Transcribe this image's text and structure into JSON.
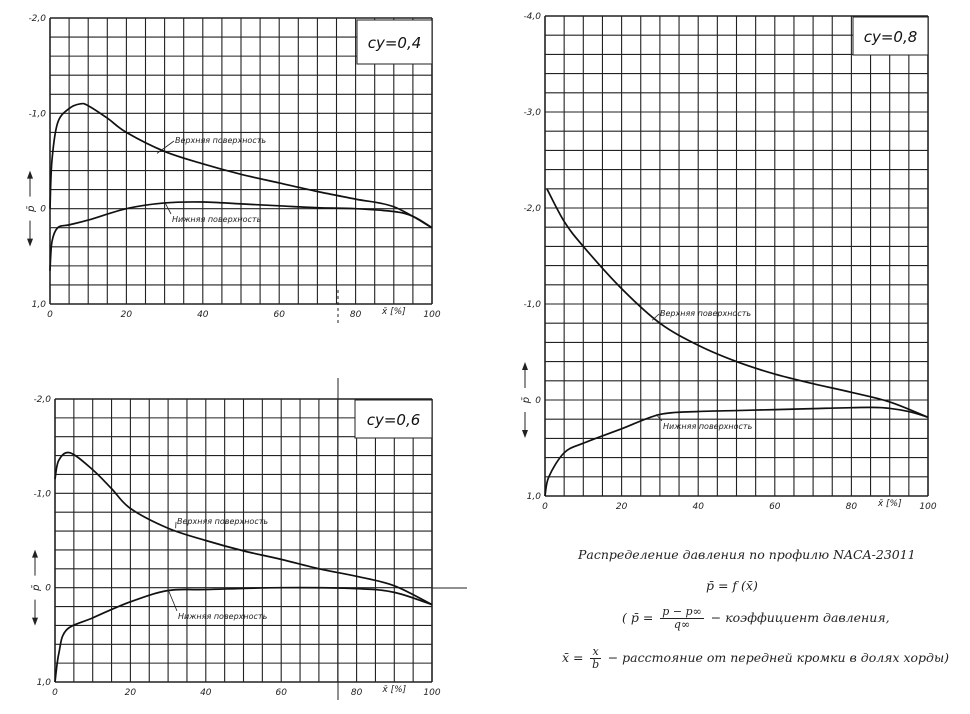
{
  "caption": {
    "title": "Распределение давления по профилю NACA-23011",
    "formula": "p̄ = f (x̄)",
    "p_def_prefix": "( p̄ =",
    "p_def_num": "p − p∞",
    "p_def_den": "q∞",
    "p_def_text": "− коэффициент давления,",
    "x_def_prefix": "x̄ =",
    "x_def_num": "x",
    "x_def_den": "b",
    "x_def_text": "− расстояние от передней кромки в долях хорды)"
  },
  "chart_data": [
    {
      "type": "line",
      "title": "cy=0,4",
      "xlabel": "x̄ [%]",
      "ylabel": "p̄",
      "xlim": [
        0,
        100
      ],
      "ylim": [
        -2.0,
        1.0
      ],
      "y_inverted": true,
      "grid": true,
      "x_ticks": [
        "0",
        "20",
        "40",
        "60",
        "80",
        "100"
      ],
      "y_ticks": [
        "-2,0",
        "-1,0",
        "0",
        "1,0"
      ],
      "series": [
        {
          "name": "Верхняя поверхность",
          "x": [
            0,
            0.5,
            2,
            5,
            8,
            10,
            15,
            20,
            30,
            40,
            50,
            60,
            70,
            80,
            90,
            100
          ],
          "y": [
            0.0,
            -0.5,
            -0.9,
            -1.05,
            -1.1,
            -1.08,
            -0.95,
            -0.8,
            -0.6,
            -0.47,
            -0.36,
            -0.27,
            -0.18,
            -0.1,
            -0.02,
            0.2
          ]
        },
        {
          "name": "Нижняя поверхность",
          "x": [
            0,
            0.5,
            2,
            5,
            10,
            20,
            30,
            40,
            50,
            60,
            70,
            80,
            90,
            95,
            100
          ],
          "y": [
            0.65,
            0.35,
            0.2,
            0.17,
            0.12,
            0.0,
            -0.06,
            -0.07,
            -0.05,
            -0.03,
            -0.01,
            0.0,
            0.03,
            0.08,
            0.2
          ]
        }
      ]
    },
    {
      "type": "line",
      "title": "cy=0,6",
      "xlabel": "x̄ [%]",
      "ylabel": "p̄",
      "xlim": [
        0,
        100
      ],
      "ylim": [
        -2.0,
        1.0
      ],
      "y_inverted": true,
      "grid": true,
      "x_ticks": [
        "0",
        "20",
        "40",
        "60",
        "80",
        "100"
      ],
      "y_ticks": [
        "-2,0",
        "-1,0",
        "0",
        "1,0"
      ],
      "series": [
        {
          "name": "Верхняя поверхность",
          "x": [
            0,
            1,
            4,
            10,
            15,
            20,
            30,
            40,
            50,
            60,
            70,
            80,
            90,
            100
          ],
          "y": [
            -1.15,
            -1.35,
            -1.43,
            -1.25,
            -1.05,
            -0.84,
            -0.63,
            -0.5,
            -0.39,
            -0.3,
            -0.2,
            -0.12,
            -0.02,
            0.18
          ]
        },
        {
          "name": "Нижняя поверхность",
          "x": [
            0,
            1,
            3,
            10,
            20,
            30,
            40,
            60,
            80,
            90,
            100
          ],
          "y": [
            1.0,
            0.7,
            0.45,
            0.32,
            0.15,
            0.03,
            0.02,
            0.0,
            0.01,
            0.05,
            0.18
          ]
        }
      ]
    },
    {
      "type": "line",
      "title": "cy=0,8",
      "xlabel": "x̄ [%]",
      "ylabel": "p̄",
      "xlim": [
        0,
        100
      ],
      "ylim": [
        -4.0,
        1.0
      ],
      "y_inverted": true,
      "grid": true,
      "x_ticks": [
        "0",
        "20",
        "40",
        "60",
        "80",
        "100"
      ],
      "y_ticks": [
        "-4,0",
        "-3,0",
        "-2,0",
        "-1,0",
        "0",
        "1,0"
      ],
      "series": [
        {
          "name": "Верхняя поверхность",
          "x": [
            0.5,
            5,
            10,
            20,
            30,
            40,
            50,
            60,
            70,
            80,
            90,
            100
          ],
          "y": [
            -2.2,
            -1.86,
            -1.6,
            -1.16,
            -0.8,
            -0.57,
            -0.4,
            -0.27,
            -0.17,
            -0.08,
            0.02,
            0.18
          ]
        },
        {
          "name": "Нижняя поверхность",
          "x": [
            0,
            1,
            5,
            10,
            20,
            30,
            40,
            50,
            60,
            70,
            80,
            88,
            95,
            100
          ],
          "y": [
            1.0,
            0.8,
            0.55,
            0.45,
            0.3,
            0.15,
            0.12,
            0.11,
            0.1,
            0.09,
            0.08,
            0.08,
            0.12,
            0.18
          ]
        }
      ]
    }
  ]
}
